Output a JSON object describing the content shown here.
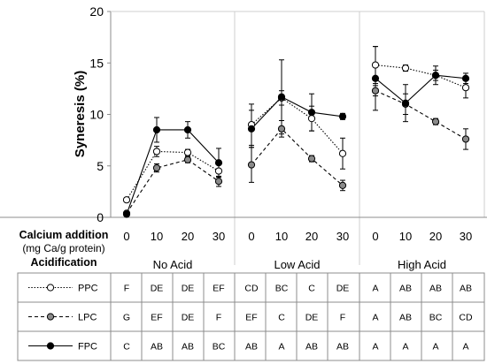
{
  "chart_data": {
    "type": "line",
    "ylabel": "Syneresis (%)",
    "ylim": [
      0,
      20
    ],
    "yticks": [
      0,
      5,
      10,
      15,
      20
    ],
    "grid": false,
    "calcium_levels": [
      "0",
      "10",
      "20",
      "30"
    ],
    "calcium_label_line1": "Calcium addition",
    "calcium_label_line2": "(mg Ca/g protein)",
    "acidification_label": "Acidification",
    "groups": [
      "No Acid",
      "Low Acid",
      "High Acid"
    ],
    "series": [
      {
        "name": "PPC",
        "marker": "open-circle",
        "line": "dotted",
        "values": [
          [
            1.7,
            6.4,
            6.3,
            4.5
          ],
          [
            9.0,
            11.6,
            9.6,
            6.2
          ],
          [
            14.8,
            14.5,
            13.8,
            12.6
          ]
        ],
        "errors": [
          [
            0,
            0.5,
            0.3,
            0.6
          ],
          [
            2.0,
            0.7,
            1.2,
            1.5
          ],
          [
            1.8,
            0.3,
            0.5,
            1.0
          ]
        ],
        "letters": [
          "F",
          "DE",
          "DE",
          "EF",
          "CD",
          "BC",
          "C",
          "DE",
          "A",
          "AB",
          "AB",
          "AB"
        ]
      },
      {
        "name": "LPC",
        "marker": "grey-circle",
        "line": "dashed",
        "values": [
          [
            0.4,
            4.8,
            5.6,
            3.5
          ],
          [
            5.1,
            8.6,
            5.7,
            3.1
          ],
          [
            12.3,
            11.0,
            9.3,
            7.6
          ]
        ],
        "errors": [
          [
            0,
            0.4,
            0.3,
            0.5
          ],
          [
            1.7,
            0.8,
            0.3,
            0.5
          ],
          [
            0.5,
            1.0,
            0.3,
            1.0
          ]
        ],
        "letters": [
          "G",
          "EF",
          "DE",
          "F",
          "EF",
          "C",
          "DE",
          "F",
          "A",
          "AB",
          "BC",
          "CD"
        ]
      },
      {
        "name": "FPC",
        "marker": "filled-circle",
        "line": "solid",
        "values": [
          [
            0.3,
            8.5,
            8.5,
            5.3
          ],
          [
            8.6,
            11.7,
            10.2,
            9.8
          ],
          [
            13.5,
            11.1,
            13.8,
            13.5
          ]
        ],
        "errors": [
          [
            0,
            1.2,
            0.8,
            1.4
          ],
          [
            1.8,
            3.6,
            1.8,
            0.3
          ],
          [
            3.1,
            1.8,
            0.9,
            0.5
          ]
        ],
        "letters": [
          "C",
          "AB",
          "AB",
          "BC",
          "AB",
          "A",
          "AB",
          "AB",
          "A",
          "A",
          "A",
          "A"
        ]
      }
    ]
  }
}
